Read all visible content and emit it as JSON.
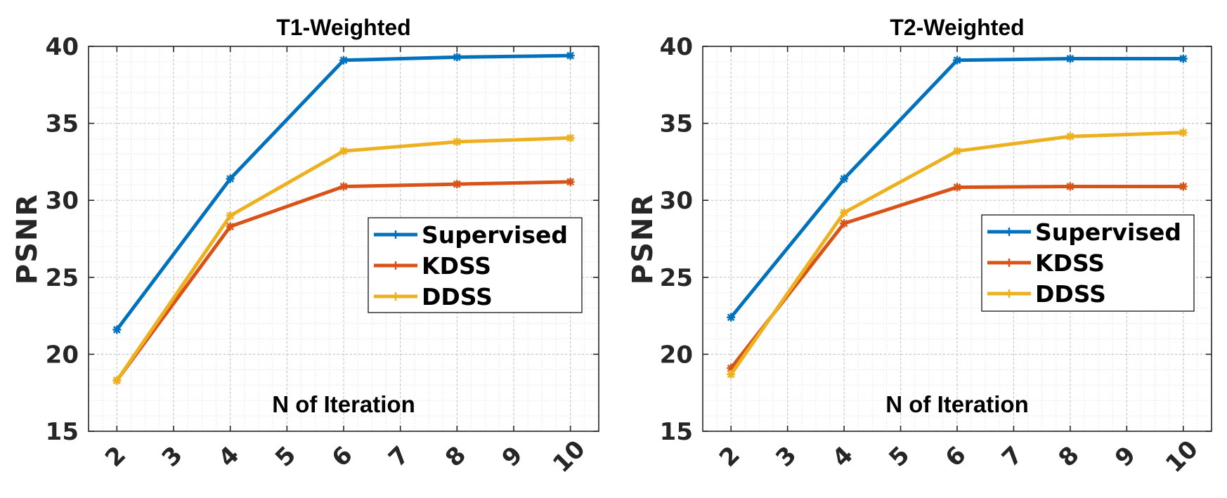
{
  "chart_data": [
    {
      "type": "line",
      "title": "T1-Weighted",
      "xlabel": "N of Iteration",
      "ylabel": "PSNR",
      "x": [
        2,
        4,
        6,
        8,
        10
      ],
      "xticks": [
        "2",
        "3",
        "4",
        "5",
        "6",
        "7",
        "8",
        "9",
        "10"
      ],
      "yticks": [
        "15",
        "20",
        "25",
        "30",
        "35",
        "40"
      ],
      "xlim": [
        1.5,
        10.5
      ],
      "ylim": [
        15,
        40
      ],
      "grid": true,
      "legend_position": "right",
      "series": [
        {
          "name": "Supervised",
          "color": "#0072BD",
          "values": [
            21.6,
            31.4,
            39.1,
            39.3,
            39.4
          ]
        },
        {
          "name": "KDSS",
          "color": "#D95319",
          "values": [
            18.3,
            28.3,
            30.9,
            31.05,
            31.2
          ]
        },
        {
          "name": "DDSS",
          "color": "#EDB120",
          "values": [
            18.3,
            29.0,
            33.2,
            33.8,
            34.05
          ]
        }
      ]
    },
    {
      "type": "line",
      "title": "T2-Weighted",
      "xlabel": "N of Iteration",
      "ylabel": "PSNR",
      "x": [
        2,
        4,
        6,
        8,
        10
      ],
      "xticks": [
        "2",
        "3",
        "4",
        "5",
        "6",
        "7",
        "8",
        "9",
        "10"
      ],
      "yticks": [
        "15",
        "20",
        "25",
        "30",
        "35",
        "40"
      ],
      "xlim": [
        1.5,
        10.5
      ],
      "ylim": [
        15,
        40
      ],
      "grid": true,
      "legend_position": "right",
      "series": [
        {
          "name": "Supervised",
          "color": "#0072BD",
          "values": [
            22.4,
            31.4,
            39.1,
            39.2,
            39.2
          ]
        },
        {
          "name": "KDSS",
          "color": "#D95319",
          "values": [
            19.1,
            28.5,
            30.85,
            30.9,
            30.9
          ]
        },
        {
          "name": "DDSS",
          "color": "#EDB120",
          "values": [
            18.7,
            29.2,
            33.2,
            34.15,
            34.4
          ]
        }
      ]
    }
  ]
}
